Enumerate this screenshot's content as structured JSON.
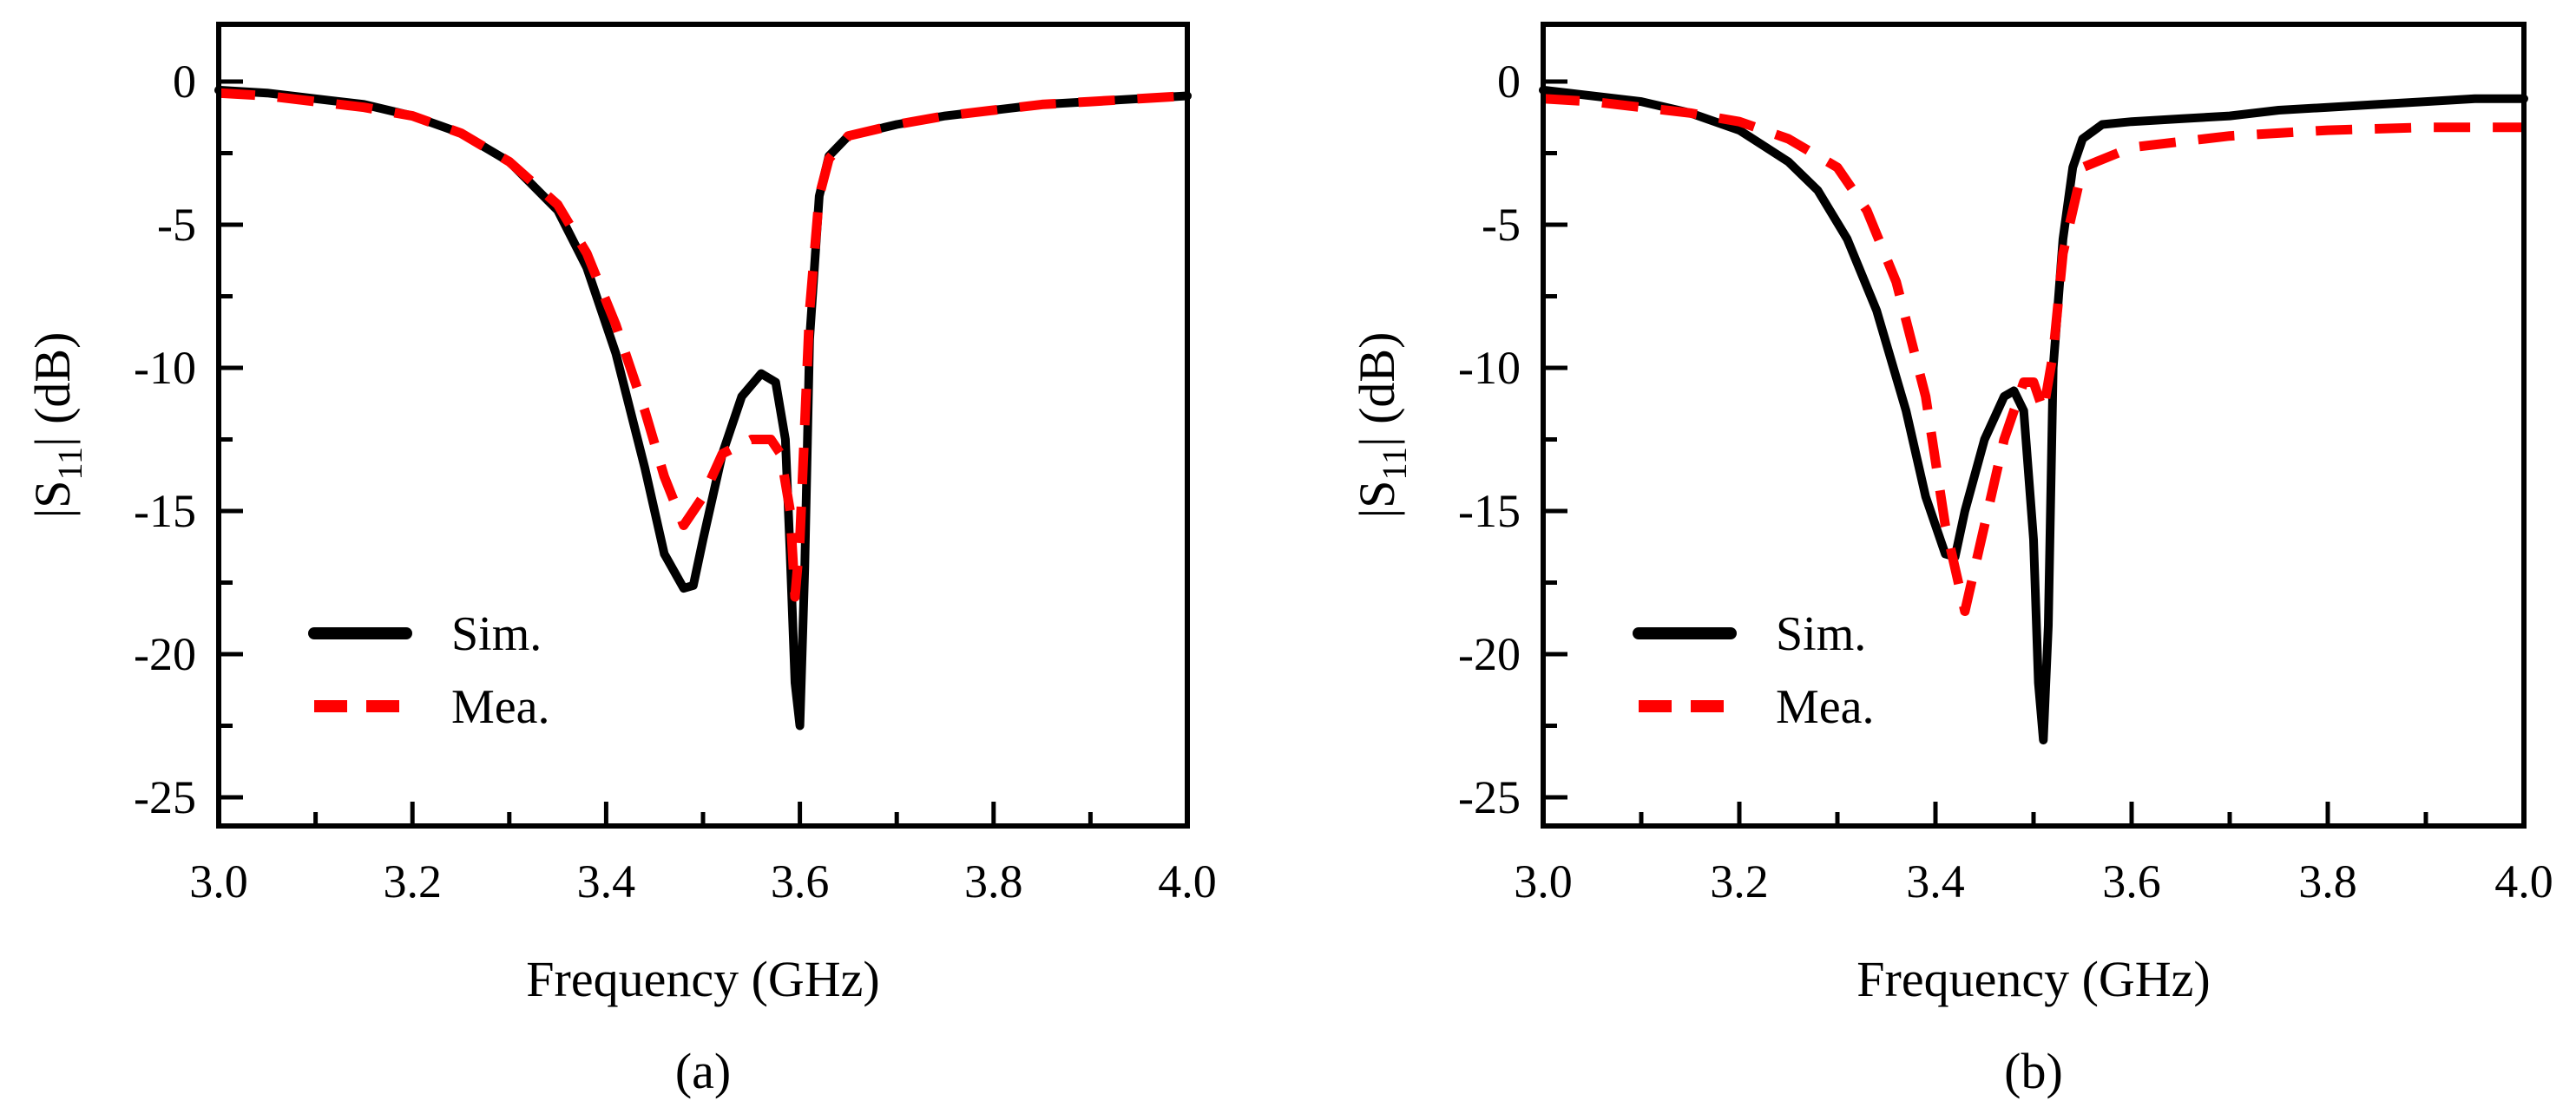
{
  "chart_data": [
    {
      "type": "line",
      "panel": "a",
      "caption": "(a)",
      "xlabel": "Frequency (GHz)",
      "ylabel": {
        "open": "|S",
        "sub": "11",
        "close": "| (dB)"
      },
      "xlim": [
        3.0,
        4.0
      ],
      "ylim": [
        -26,
        2
      ],
      "xticks": [
        3.0,
        3.2,
        3.4,
        3.6,
        3.8,
        4.0
      ],
      "xtick_labels": [
        "3.0",
        "3.2",
        "3.4",
        "3.6",
        "3.8",
        "4.0"
      ],
      "yticks": [
        0,
        -5,
        -10,
        -15,
        -20,
        -25
      ],
      "ytick_labels": [
        "0",
        "-5",
        "-10",
        "-15",
        "-20",
        "-25"
      ],
      "legend": {
        "position": "lower-left"
      },
      "series": [
        {
          "name": "Sim.",
          "style": "solid",
          "color": "#000000",
          "x": [
            3.0,
            3.05,
            3.1,
            3.15,
            3.2,
            3.25,
            3.3,
            3.35,
            3.38,
            3.41,
            3.44,
            3.46,
            3.48,
            3.49,
            3.5,
            3.52,
            3.54,
            3.56,
            3.575,
            3.585,
            3.59,
            3.595,
            3.6,
            3.605,
            3.61,
            3.62,
            3.63,
            3.65,
            3.7,
            3.75,
            3.8,
            3.85,
            3.9,
            3.95,
            4.0
          ],
          "y": [
            -0.3,
            -0.4,
            -0.6,
            -0.8,
            -1.2,
            -1.8,
            -2.8,
            -4.5,
            -6.5,
            -9.5,
            -13.5,
            -16.5,
            -17.7,
            -17.6,
            -16.0,
            -13.0,
            -11.0,
            -10.2,
            -10.5,
            -12.5,
            -16.5,
            -21.0,
            -22.5,
            -17.0,
            -9.0,
            -4.0,
            -2.6,
            -1.9,
            -1.5,
            -1.2,
            -1.0,
            -0.8,
            -0.7,
            -0.6,
            -0.5
          ]
        },
        {
          "name": "Mea.",
          "style": "dashed",
          "color": "#ff0000",
          "x": [
            3.0,
            3.05,
            3.1,
            3.15,
            3.2,
            3.25,
            3.3,
            3.35,
            3.38,
            3.41,
            3.44,
            3.46,
            3.48,
            3.5,
            3.52,
            3.55,
            3.57,
            3.58,
            3.59,
            3.595,
            3.6,
            3.605,
            3.61,
            3.62,
            3.63,
            3.65,
            3.7,
            3.75,
            3.8,
            3.85,
            3.9,
            3.95,
            4.0
          ],
          "y": [
            -0.4,
            -0.5,
            -0.7,
            -0.9,
            -1.2,
            -1.8,
            -2.8,
            -4.3,
            -6.0,
            -8.5,
            -11.5,
            -13.8,
            -15.5,
            -14.5,
            -13.0,
            -12.5,
            -12.5,
            -13.0,
            -15.0,
            -18.0,
            -16.0,
            -12.0,
            -8.0,
            -4.0,
            -2.7,
            -1.9,
            -1.5,
            -1.2,
            -1.0,
            -0.8,
            -0.7,
            -0.6,
            -0.5
          ]
        }
      ]
    },
    {
      "type": "line",
      "panel": "b",
      "caption": "(b)",
      "xlabel": "Frequency (GHz)",
      "ylabel": {
        "open": "|S",
        "sub": "11",
        "close": "| (dB)"
      },
      "xlim": [
        3.0,
        4.0
      ],
      "ylim": [
        -26,
        2
      ],
      "xticks": [
        3.0,
        3.2,
        3.4,
        3.6,
        3.8,
        4.0
      ],
      "xtick_labels": [
        "3.0",
        "3.2",
        "3.4",
        "3.6",
        "3.8",
        "4.0"
      ],
      "yticks": [
        0,
        -5,
        -10,
        -15,
        -20,
        -25
      ],
      "ytick_labels": [
        "0",
        "-5",
        "-10",
        "-15",
        "-20",
        "-25"
      ],
      "legend": {
        "position": "lower-left"
      },
      "series": [
        {
          "name": "Sim.",
          "style": "solid",
          "color": "#000000",
          "x": [
            3.0,
            3.05,
            3.1,
            3.15,
            3.2,
            3.25,
            3.28,
            3.31,
            3.34,
            3.37,
            3.39,
            3.41,
            3.42,
            3.43,
            3.45,
            3.47,
            3.48,
            3.49,
            3.5,
            3.505,
            3.51,
            3.515,
            3.52,
            3.53,
            3.54,
            3.55,
            3.57,
            3.6,
            3.65,
            3.7,
            3.75,
            3.8,
            3.85,
            3.9,
            3.95,
            4.0
          ],
          "y": [
            -0.3,
            -0.5,
            -0.7,
            -1.1,
            -1.7,
            -2.8,
            -3.8,
            -5.5,
            -8.0,
            -11.5,
            -14.5,
            -16.5,
            -16.6,
            -15.0,
            -12.5,
            -11.0,
            -10.8,
            -11.5,
            -16.0,
            -21.0,
            -23.0,
            -19.0,
            -10.0,
            -5.5,
            -3.0,
            -2.0,
            -1.5,
            -1.4,
            -1.3,
            -1.2,
            -1.0,
            -0.9,
            -0.8,
            -0.7,
            -0.6,
            -0.6
          ]
        },
        {
          "name": "Mea.",
          "style": "dashed",
          "color": "#ff0000",
          "x": [
            3.0,
            3.05,
            3.1,
            3.15,
            3.2,
            3.25,
            3.3,
            3.33,
            3.36,
            3.39,
            3.41,
            3.43,
            3.45,
            3.47,
            3.49,
            3.5,
            3.51,
            3.52,
            3.53,
            3.55,
            3.6,
            3.65,
            3.7,
            3.8,
            3.9,
            4.0
          ],
          "y": [
            -0.6,
            -0.7,
            -0.9,
            -1.1,
            -1.4,
            -2.0,
            -3.0,
            -4.5,
            -7.0,
            -11.0,
            -15.5,
            -18.5,
            -15.5,
            -12.5,
            -10.5,
            -10.5,
            -11.5,
            -9.5,
            -6.0,
            -3.0,
            -2.3,
            -2.1,
            -1.9,
            -1.7,
            -1.6,
            -1.6
          ]
        }
      ]
    }
  ]
}
